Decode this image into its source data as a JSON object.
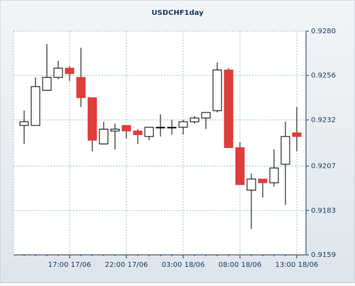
{
  "chart_data": {
    "type": "candlestick",
    "title": "USDCHF1day",
    "categories": [
      null,
      null,
      null,
      null,
      "17:00 17/06",
      null,
      null,
      null,
      null,
      "22:00 17/06",
      null,
      null,
      null,
      null,
      "03:00 18/06",
      null,
      null,
      null,
      null,
      "08:00 18/06",
      null,
      null,
      null,
      null,
      "13:00 18/06"
    ],
    "open": [
      0.9229,
      0.9229,
      0.9248,
      0.9255,
      0.926,
      0.9255,
      0.9244,
      0.9219,
      0.9226,
      0.9229,
      0.9226,
      0.9223,
      0.9228,
      0.9228,
      0.9228,
      0.9231,
      0.9233,
      0.9237,
      0.9259,
      0.9217,
      0.9194,
      0.92,
      0.9198,
      0.9208,
      0.9225
    ],
    "high": [
      0.9237,
      0.9255,
      0.9273,
      0.9264,
      0.9261,
      0.9271,
      0.9244,
      0.9231,
      0.923,
      0.9229,
      0.9227,
      0.9228,
      0.9235,
      0.9232,
      0.9232,
      0.9234,
      0.9236,
      0.9263,
      0.926,
      0.922,
      0.9203,
      0.92,
      0.9216,
      0.9231,
      0.9239
    ],
    "low": [
      0.9219,
      0.9229,
      0.9248,
      0.9254,
      0.9253,
      0.9239,
      0.9215,
      0.9219,
      0.9216,
      0.9222,
      0.9219,
      0.9221,
      0.9223,
      0.9224,
      0.9224,
      0.923,
      0.9227,
      0.9236,
      0.9217,
      0.9197,
      0.9173,
      0.919,
      0.9196,
      0.9186,
      0.9215
    ],
    "close": [
      0.9231,
      0.925,
      0.9255,
      0.926,
      0.9257,
      0.9244,
      0.9221,
      0.9227,
      0.9227,
      0.9226,
      0.9224,
      0.9228,
      0.9228,
      0.9228,
      0.9231,
      0.9233,
      0.9236,
      0.9259,
      0.9217,
      0.9197,
      0.92,
      0.9198,
      0.9206,
      0.9223,
      0.9223
    ],
    "up_color": "#ffffff",
    "down_color": "#e03c3c",
    "ylim": [
      0.9159,
      0.928
    ],
    "yticks": [
      {
        "value": 0.928,
        "label": "0.9280"
      },
      0.9256,
      0.9232,
      0.9207,
      0.9183,
      0.9159
    ],
    "grid": true
  }
}
